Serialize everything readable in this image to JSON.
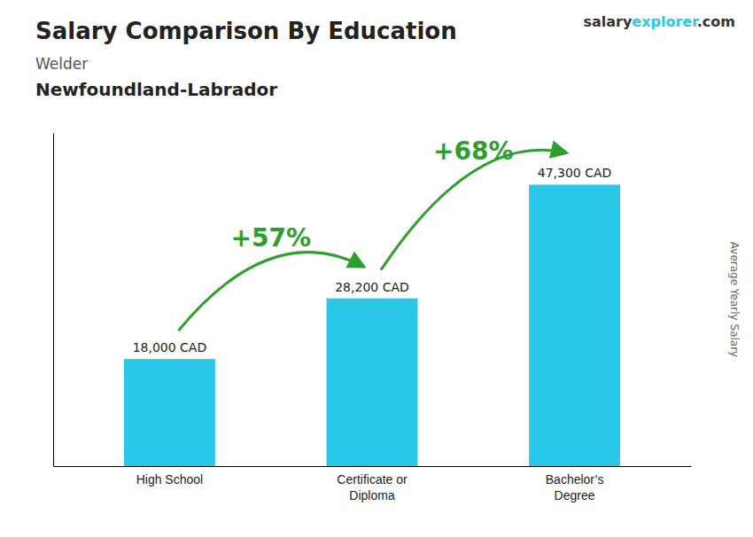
{
  "chart_data": {
    "type": "bar",
    "title": "Salary Comparison By Education",
    "subtitle": [
      "Welder",
      "Newfoundland-Labrador"
    ],
    "watermark": [
      "salary",
      "explorer",
      ".com"
    ],
    "ylabel": "Average Yearly Salary",
    "categories": [
      "High School",
      "Certificate or\nDiploma",
      "Bachelor’s\nDegree"
    ],
    "values": [
      18000,
      28200,
      47300
    ],
    "value_labels": [
      "18,000 CAD",
      "28,200 CAD",
      "47,300 CAD"
    ],
    "data_labels": true,
    "annotations": [
      "+57%",
      "+68%"
    ],
    "color": "#29C8E8",
    "ylim": [
      0,
      56000
    ],
    "tick_labels": "x",
    "grid": false
  }
}
